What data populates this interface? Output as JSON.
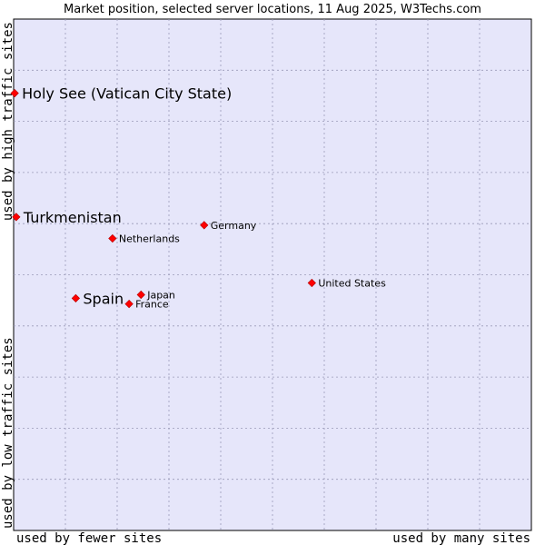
{
  "chart_data": {
    "type": "scatter",
    "title": "Market position, selected server locations, 11 Aug 2025, W3Techs.com",
    "xlabel_left": "used by fewer sites",
    "xlabel_right": "used by many sites",
    "ylabel_top": "used by high traffic sites",
    "ylabel_bottom": "used by low traffic sites",
    "xlim": [
      0,
      100
    ],
    "ylim": [
      0,
      100
    ],
    "grid": true,
    "colors": {
      "background": "#e6e6fa",
      "grid": "#9a9ab8",
      "marker": "#ff0000",
      "marker_edge": "#b00000"
    },
    "points": [
      {
        "label": "Holy See (Vatican City State)",
        "x": 0.2,
        "y": 85.5,
        "emphasis": "large"
      },
      {
        "label": "Turkmenistan",
        "x": 0.5,
        "y": 61.3,
        "emphasis": "large"
      },
      {
        "label": "Germany",
        "x": 36.8,
        "y": 59.7,
        "emphasis": "small"
      },
      {
        "label": "Netherlands",
        "x": 19.1,
        "y": 57.1,
        "emphasis": "small"
      },
      {
        "label": "United States",
        "x": 57.6,
        "y": 48.4,
        "emphasis": "small"
      },
      {
        "label": "Japan",
        "x": 24.6,
        "y": 46.1,
        "emphasis": "small"
      },
      {
        "label": "Spain",
        "x": 12.0,
        "y": 45.4,
        "emphasis": "large"
      },
      {
        "label": "France",
        "x": 22.3,
        "y": 44.3,
        "emphasis": "small"
      }
    ]
  }
}
